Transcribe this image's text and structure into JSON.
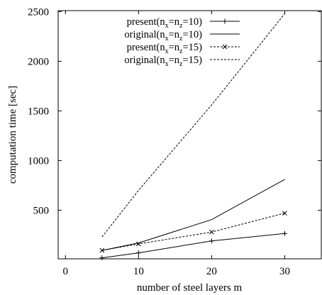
{
  "chart_data": {
    "type": "line",
    "title": "",
    "xlabel": "number of steel layers  m",
    "ylabel": "computation time [sec]",
    "xlim": [
      -1,
      35
    ],
    "ylim": [
      10,
      2510
    ],
    "x_ticks": [
      0,
      10,
      20,
      30
    ],
    "y_ticks": [
      500,
      1000,
      1500,
      2000,
      2500
    ],
    "grid": false,
    "legend_position": "top-center",
    "x": [
      5,
      10,
      20,
      30
    ],
    "series": [
      {
        "name": "present(n_x=n_z=10)",
        "label_main": "present(n",
        "label_sub1": "x",
        "label_eq": "=n",
        "label_sub2": "z",
        "label_end": "=10)",
        "values": [
          20,
          70,
          190,
          265
        ],
        "line": "solid",
        "marker": "plus",
        "color": "#000000"
      },
      {
        "name": "original(n_x=n_z=10)",
        "label_main": "original(n",
        "label_sub1": "x",
        "label_eq": "=n",
        "label_sub2": "z",
        "label_end": "=10)",
        "values": [
          95,
          170,
          405,
          810
        ],
        "line": "solid",
        "marker": "none",
        "color": "#000000"
      },
      {
        "name": "present(n_x=n_z=15)",
        "label_main": "present(n",
        "label_sub1": "x",
        "label_eq": "=n",
        "label_sub2": "z",
        "label_end": "=15)",
        "values": [
          95,
          160,
          280,
          470
        ],
        "line": "dashed",
        "marker": "x",
        "color": "#000000"
      },
      {
        "name": "original(n_x=n_z=15)",
        "label_main": "original(n",
        "label_sub1": "x",
        "label_eq": "=n",
        "label_sub2": "z",
        "label_end": "=15)",
        "values": [
          230,
          700,
          1560,
          2480
        ],
        "line": "dashed",
        "marker": "none",
        "color": "#000000"
      }
    ]
  }
}
